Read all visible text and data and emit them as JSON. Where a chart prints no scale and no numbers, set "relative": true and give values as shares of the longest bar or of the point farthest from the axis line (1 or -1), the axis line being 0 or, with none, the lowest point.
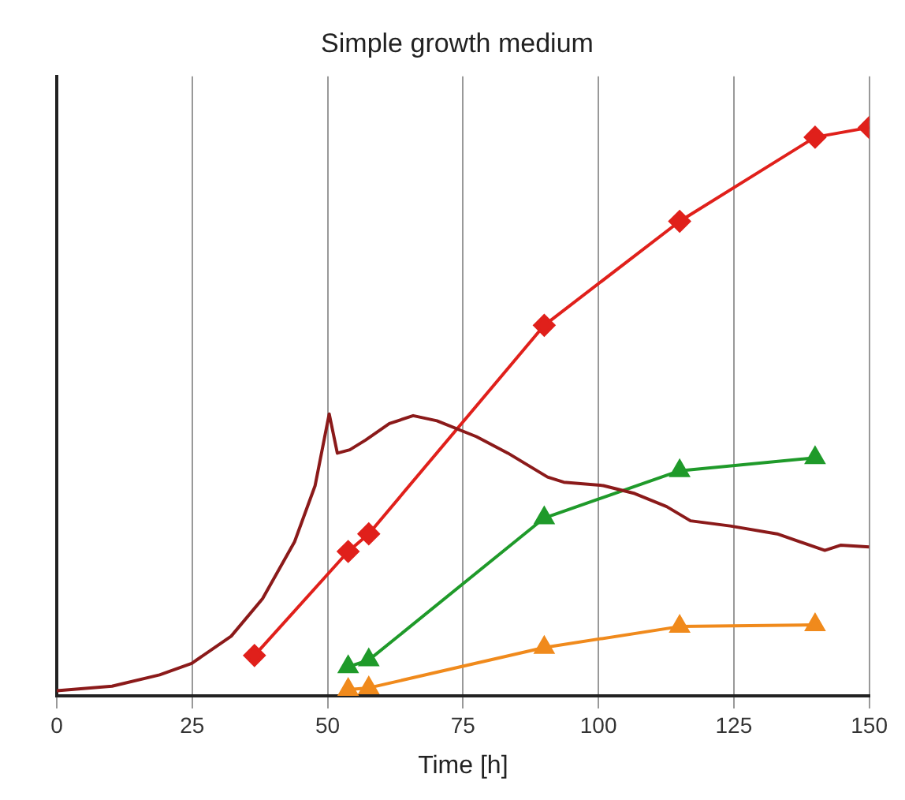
{
  "chart_data": {
    "type": "line",
    "title": "Simple growth medium",
    "xlabel": "Time [h]",
    "relative": true,
    "xlim": [
      0,
      150
    ],
    "xticks": [
      0,
      25,
      50,
      75,
      100,
      125,
      150
    ],
    "grid": "x",
    "tick_labels": "x",
    "legend": false,
    "line_style": "solid",
    "series": [
      {
        "color": "#8b1a1a",
        "marker": "none",
        "x": [
          0,
          10.2,
          19,
          24.9,
          32.2,
          38,
          43.9,
          47.7,
          50.3,
          51.8,
          54.1,
          57,
          61.4,
          65.8,
          70.2,
          77.5,
          83.3,
          90.6,
          93.6,
          100.9,
          106.7,
          112.6,
          117,
          124.3,
          133,
          141.8,
          144.7,
          150
        ],
        "values": [
          0.009,
          0.017,
          0.037,
          0.057,
          0.105,
          0.171,
          0.271,
          0.37,
          0.496,
          0.427,
          0.433,
          0.45,
          0.479,
          0.493,
          0.484,
          0.456,
          0.427,
          0.385,
          0.376,
          0.37,
          0.356,
          0.333,
          0.308,
          0.299,
          0.285,
          0.256,
          0.265,
          0.262
        ]
      },
      {
        "color": "#e0201b",
        "marker": "diamond",
        "x": [
          36.5,
          53.8,
          57.6,
          90,
          115,
          140,
          150
        ],
        "values": [
          0.071,
          0.254,
          0.285,
          0.652,
          0.835,
          0.983,
          1
        ]
      },
      {
        "color": "#1f9a2a",
        "marker": "triangle",
        "x": [
          53.8,
          57.6,
          90,
          115,
          140
        ],
        "values": [
          0.051,
          0.063,
          0.313,
          0.396,
          0.419
        ]
      },
      {
        "color": "#f08a1c",
        "marker": "triangle",
        "x": [
          53.8,
          57.6,
          90,
          115,
          140
        ],
        "values": [
          0.011,
          0.014,
          0.085,
          0.122,
          0.125
        ]
      }
    ]
  }
}
